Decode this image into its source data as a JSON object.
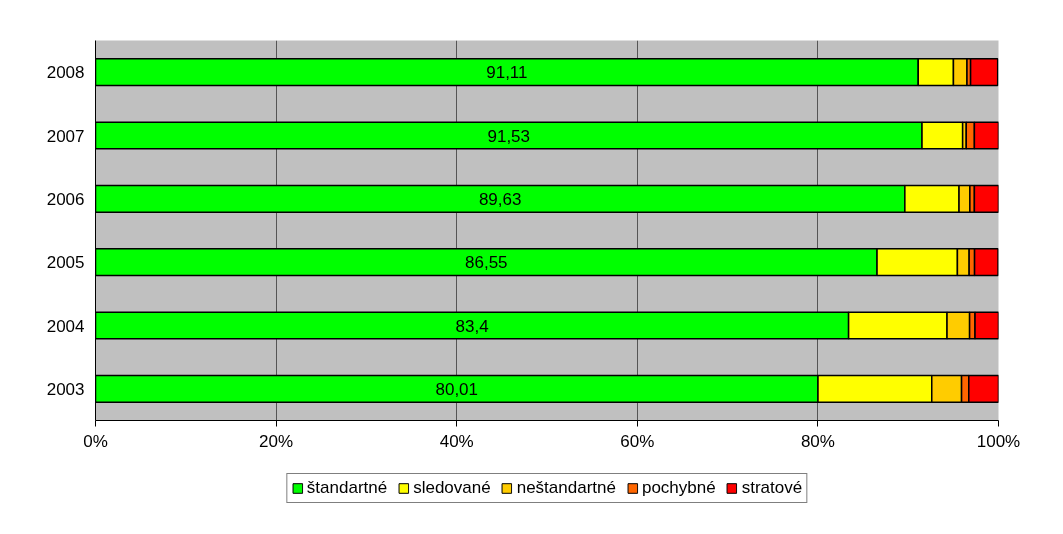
{
  "chart_data": {
    "type": "bar",
    "orientation": "horizontal",
    "stacked": true,
    "categories": [
      "2008",
      "2007",
      "2006",
      "2005",
      "2004",
      "2003"
    ],
    "series": [
      {
        "name": "štandartné",
        "color": "#00ff00",
        "values": [
          91.11,
          91.53,
          89.63,
          86.55,
          83.4,
          80.01
        ],
        "value_labels": [
          "91,11",
          "91,53",
          "89,63",
          "86,55",
          "83,4",
          "80,01"
        ]
      },
      {
        "name": "sledované",
        "color": "#ffff00",
        "values": [
          3.9,
          4.5,
          6.0,
          8.9,
          10.9,
          12.6
        ]
      },
      {
        "name": "neštandartné",
        "color": "#ffcc00",
        "values": [
          1.5,
          0.4,
          1.2,
          1.3,
          2.5,
          3.3
        ]
      },
      {
        "name": "pochybné",
        "color": "#ff6600",
        "values": [
          0.4,
          0.9,
          0.5,
          0.6,
          0.6,
          0.8
        ]
      },
      {
        "name": "stratové",
        "color": "#ff0000",
        "values": [
          3.0,
          2.7,
          2.7,
          2.6,
          2.6,
          3.3
        ]
      }
    ],
    "xlim": [
      0,
      100
    ],
    "xticks": [
      {
        "value": 0,
        "label": "0%"
      },
      {
        "value": 20,
        "label": "20%"
      },
      {
        "value": 40,
        "label": "40%"
      },
      {
        "value": 60,
        "label": "60%"
      },
      {
        "value": 80,
        "label": "80%"
      },
      {
        "value": 100,
        "label": "100%"
      }
    ],
    "grid": "x",
    "legend": "bottom"
  }
}
